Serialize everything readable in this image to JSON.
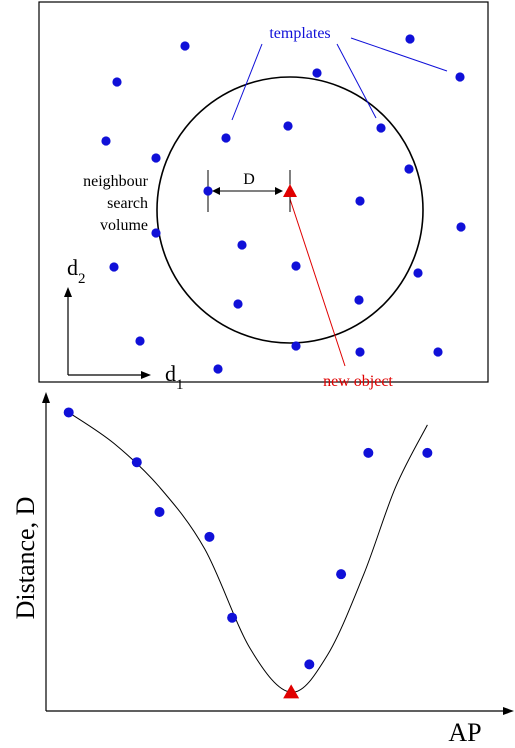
{
  "top_panel": {
    "labels": {
      "templates": "templates",
      "neighbour_search_volume": [
        "neighbour",
        "search",
        "volume"
      ],
      "distance_symbol": "D",
      "new_object": "new object",
      "axis_d2_base": "d",
      "axis_d2_sub": "2",
      "axis_d1_base": "d",
      "axis_d1_sub": "1"
    },
    "colors": {
      "template_dot": "#1010d8",
      "new_object": "#e00000",
      "label_blue": "#1010d8",
      "label_red": "#e00000",
      "ink": "#000000"
    }
  },
  "bottom_panel": {
    "labels": {
      "ylabel": "Distance, D",
      "xlabel": "AP"
    }
  },
  "chart_data": {
    "type": "scatter",
    "title": "",
    "xlabel": "AP",
    "ylabel": "Distance, D",
    "series": [
      {
        "marker": "circle",
        "color": "#1010d8",
        "points": [
          [
            0.05,
            0.96
          ],
          [
            0.2,
            0.8
          ],
          [
            0.25,
            0.64
          ],
          [
            0.36,
            0.56
          ],
          [
            0.41,
            0.3
          ],
          [
            0.58,
            0.15
          ],
          [
            0.65,
            0.44
          ],
          [
            0.71,
            0.83
          ],
          [
            0.84,
            0.83
          ]
        ]
      },
      {
        "marker": "triangle",
        "color": "#e00000",
        "points": [
          [
            0.54,
            0.06
          ]
        ]
      }
    ],
    "fit_curve": [
      [
        0.05,
        0.96
      ],
      [
        0.15,
        0.86
      ],
      [
        0.25,
        0.72
      ],
      [
        0.35,
        0.52
      ],
      [
        0.45,
        0.2
      ],
      [
        0.54,
        0.06
      ],
      [
        0.62,
        0.18
      ],
      [
        0.7,
        0.44
      ],
      [
        0.77,
        0.72
      ],
      [
        0.84,
        0.92
      ]
    ],
    "grid": false,
    "legend": "none"
  }
}
